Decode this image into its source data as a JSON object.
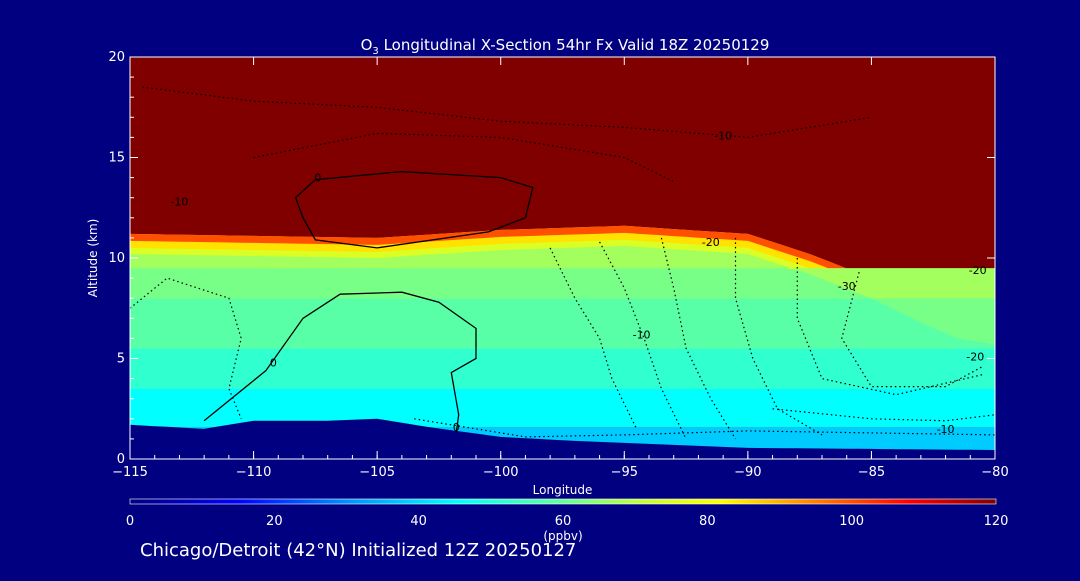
{
  "figure": {
    "title_prefix": "O",
    "title_subscript": "3",
    "title_rest": " Longitudinal X-Section 54hr  Fx Valid 18Z 20250129",
    "caption": "Chicago/Detroit (42°N) Initialized 12Z 20250127"
  },
  "colors": {
    "background": "#000080",
    "terrain": "#000080",
    "stratosphere": "#800000",
    "axis": "#ffffff"
  },
  "chart_data": {
    "type": "heatmap",
    "title": "O3 Longitudinal X-Section 54hr  Fx Valid 18Z 20250129",
    "xlabel": "Longitude",
    "ylabel": "Altitude (km)",
    "xlim": [
      -115,
      -80
    ],
    "ylim": [
      0,
      20
    ],
    "xticks": [
      {
        "v": -115,
        "label": "−115"
      },
      {
        "v": -110,
        "label": "−110"
      },
      {
        "v": -105,
        "label": "−105"
      },
      {
        "v": -100,
        "label": "−100"
      },
      {
        "v": -95,
        "label": "−95"
      },
      {
        "v": -90,
        "label": "−90"
      },
      {
        "v": -85,
        "label": "−85"
      },
      {
        "v": -80,
        "label": "−80"
      }
    ],
    "yticks": [
      {
        "v": 0,
        "label": "0"
      },
      {
        "v": 5,
        "label": "5"
      },
      {
        "v": 10,
        "label": "10"
      },
      {
        "v": 15,
        "label": "15"
      },
      {
        "v": 20,
        "label": "20"
      }
    ],
    "colorbar": {
      "label": "(ppbv)",
      "min": 0,
      "max": 120,
      "ticks": [
        0,
        20,
        40,
        60,
        80,
        100,
        120
      ],
      "stops": [
        {
          "v": 0,
          "color": "#000080"
        },
        {
          "v": 15,
          "color": "#0000ff"
        },
        {
          "v": 30,
          "color": "#0090ff"
        },
        {
          "v": 45,
          "color": "#00ffff"
        },
        {
          "v": 60,
          "color": "#66ff99"
        },
        {
          "v": 72,
          "color": "#ccff33"
        },
        {
          "v": 82,
          "color": "#ffff00"
        },
        {
          "v": 95,
          "color": "#ff8000"
        },
        {
          "v": 108,
          "color": "#ff0000"
        },
        {
          "v": 120,
          "color": "#800000"
        }
      ]
    },
    "tropopause_height_km": [
      [
        -115,
        11.2
      ],
      [
        -110,
        11.1
      ],
      [
        -105,
        11.0
      ],
      [
        -100,
        11.4
      ],
      [
        -95,
        11.6
      ],
      [
        -90,
        11.2
      ],
      [
        -87.5,
        10.2
      ],
      [
        -85,
        9.0
      ],
      [
        -83,
        7.8
      ],
      [
        -81.5,
        7.0
      ],
      [
        -80,
        6.7
      ]
    ],
    "surface_height_km": [
      [
        -115,
        1.7
      ],
      [
        -112,
        1.5
      ],
      [
        -110,
        1.9
      ],
      [
        -107,
        1.9
      ],
      [
        -105,
        2.0
      ],
      [
        -103,
        1.6
      ],
      [
        -100,
        1.1
      ],
      [
        -97,
        0.9
      ],
      [
        -95,
        0.8
      ],
      [
        -90,
        0.55
      ],
      [
        -85,
        0.5
      ],
      [
        -80,
        0.45
      ]
    ],
    "bands": [
      {
        "ppbv": 38,
        "lower_km": 0,
        "upper_km": 1.6
      },
      {
        "ppbv": 45,
        "lower_km": 1.6,
        "upper_km": 3.5
      },
      {
        "ppbv": 52,
        "lower_km": 3.5,
        "upper_km": 5.5
      },
      {
        "ppbv": 58,
        "lower_km": 5.5,
        "upper_km": 8.0
      },
      {
        "ppbv": 62,
        "lower_km": 8.0,
        "upper_km": 9.5
      },
      {
        "ppbv": 67,
        "lower_km": 9.5,
        "upper_km": 10.6
      }
    ],
    "zero_contours": [
      {
        "points": [
          [
            -107.5,
            13.9
          ],
          [
            -104,
            14.3
          ],
          [
            -100,
            14.0
          ],
          [
            -98.7,
            13.5
          ],
          [
            -99,
            12.0
          ],
          [
            -100.5,
            11.3
          ],
          [
            -105,
            10.5
          ],
          [
            -107.5,
            10.9
          ],
          [
            -108,
            12.0
          ],
          [
            -108.3,
            13.0
          ]
        ]
      },
      {
        "points": [
          [
            -112,
            1.9
          ],
          [
            -109.5,
            4.4
          ],
          [
            -108,
            7.0
          ],
          [
            -106.5,
            8.2
          ],
          [
            -104,
            8.3
          ],
          [
            -102.5,
            7.8
          ],
          [
            -101,
            6.5
          ],
          [
            -101,
            5.0
          ],
          [
            -102,
            4.3
          ],
          [
            -101.7,
            2.2
          ],
          [
            -101.8,
            1.3
          ]
        ]
      }
    ],
    "contour_labels": [
      {
        "text": "0",
        "x": -107.4,
        "y": 13.8
      },
      {
        "text": "0",
        "x": -109.2,
        "y": 4.6
      },
      {
        "text": "0",
        "x": -101.8,
        "y": 1.4
      },
      {
        "text": "-10",
        "x": -113,
        "y": 12.6
      },
      {
        "text": "-10",
        "x": -91,
        "y": 15.9
      },
      {
        "text": "-20",
        "x": -91.5,
        "y": 10.6
      },
      {
        "text": "-10",
        "x": -94.3,
        "y": 6.0
      },
      {
        "text": "-30",
        "x": -86,
        "y": 8.4
      },
      {
        "text": "-20",
        "x": -80.7,
        "y": 9.2
      },
      {
        "text": "-20",
        "x": -80.8,
        "y": 4.9
      },
      {
        "text": "-10",
        "x": -82,
        "y": 1.3
      }
    ],
    "dashed_contours": [
      {
        "points": [
          [
            -114.5,
            18.5
          ],
          [
            -110,
            17.8
          ],
          [
            -105,
            17.5
          ],
          [
            -100,
            16.8
          ],
          [
            -95,
            16.5
          ],
          [
            -90,
            16.0
          ],
          [
            -85,
            17.0
          ]
        ]
      },
      {
        "points": [
          [
            -110,
            15.0
          ],
          [
            -105,
            16.2
          ],
          [
            -100,
            16.0
          ],
          [
            -95,
            15.0
          ],
          [
            -93,
            13.8
          ]
        ]
      },
      {
        "points": [
          [
            -98,
            10.5
          ],
          [
            -97,
            8.0
          ],
          [
            -96,
            6.0
          ],
          [
            -95.5,
            4.0
          ],
          [
            -94.5,
            1.5
          ]
        ]
      },
      {
        "points": [
          [
            -96,
            10.8
          ],
          [
            -95,
            8.5
          ],
          [
            -94.2,
            6.0
          ],
          [
            -93.5,
            3.5
          ],
          [
            -92.5,
            1.0
          ]
        ]
      },
      {
        "points": [
          [
            -93.5,
            11.0
          ],
          [
            -93,
            8.5
          ],
          [
            -92.5,
            5.5
          ],
          [
            -91.5,
            3.0
          ],
          [
            -90.5,
            1.0
          ]
        ]
      },
      {
        "points": [
          [
            -90.5,
            11.0
          ],
          [
            -90.5,
            8.0
          ],
          [
            -89.8,
            5.0
          ],
          [
            -88.8,
            2.5
          ],
          [
            -87,
            1.2
          ]
        ]
      },
      {
        "points": [
          [
            -88,
            10.0
          ],
          [
            -88,
            7.0
          ],
          [
            -87,
            4.0
          ],
          [
            -84,
            3.2
          ],
          [
            -80.5,
            4.2
          ]
        ]
      },
      {
        "points": [
          [
            -85.5,
            9.3
          ],
          [
            -86.2,
            6.0
          ],
          [
            -85,
            3.6
          ],
          [
            -82,
            3.6
          ],
          [
            -80.5,
            4.6
          ]
        ]
      },
      {
        "points": [
          [
            -89,
            2.5
          ],
          [
            -85,
            2.0
          ],
          [
            -82,
            1.9
          ],
          [
            -80,
            2.2
          ]
        ]
      },
      {
        "points": [
          [
            -103.5,
            2.0
          ],
          [
            -99,
            1.1
          ],
          [
            -95,
            1.2
          ],
          [
            -90,
            1.4
          ],
          [
            -85,
            1.3
          ],
          [
            -80,
            1.2
          ]
        ]
      },
      {
        "points": [
          [
            -115,
            7.5
          ],
          [
            -113.5,
            9.0
          ],
          [
            -111,
            8.0
          ],
          [
            -110.5,
            6.0
          ],
          [
            -111,
            3.5
          ],
          [
            -110.5,
            2.0
          ]
        ]
      }
    ]
  }
}
